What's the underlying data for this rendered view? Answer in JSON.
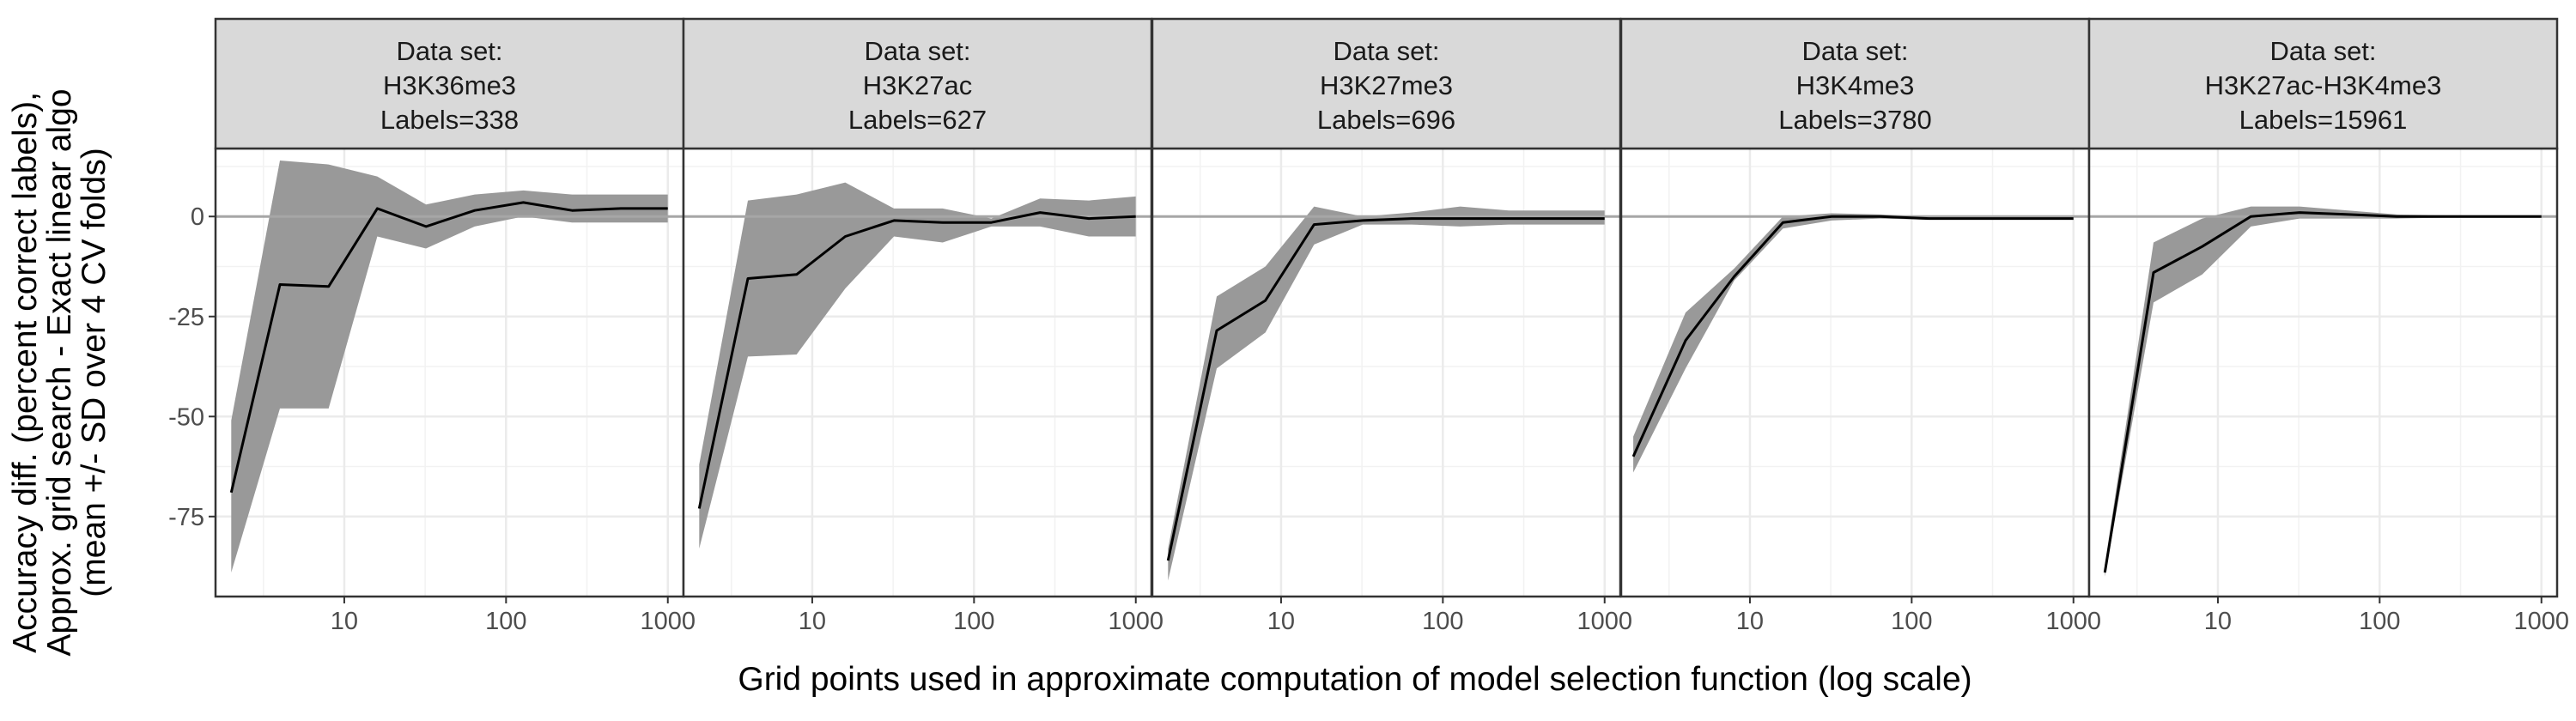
{
  "chart_data": {
    "type": "line",
    "ylabel": [
      "Accuracy diff. (percent correct labels),",
      "Approx. grid search - Exact linear algo",
      "(mean +/- SD over 4 CV folds)"
    ],
    "xlabel": "Grid points used in approximate computation of model selection function (log scale)",
    "x_scale": "log10",
    "xlim": [
      1.6,
      1250
    ],
    "ylim": [
      -95,
      17
    ],
    "x_ticks": [
      10,
      100,
      1000
    ],
    "x_tick_labels": [
      "10",
      "100",
      "1000"
    ],
    "y_ticks": [
      0,
      -25,
      -50,
      -75
    ],
    "y_tick_labels": [
      "0",
      "-25",
      "-50",
      "-75"
    ],
    "reference_line_y": 0,
    "grid": true,
    "colors": {
      "line": "#000000",
      "band": "#999999",
      "reference": "#a6a6a6",
      "strip": "#d9d9d9",
      "grid": "#ebebeb",
      "frame": "#333333"
    },
    "panels": [
      {
        "strip": [
          "Data set:",
          "H3K36me3",
          "Labels=338"
        ],
        "x": [
          2,
          4,
          8,
          16,
          32,
          64,
          128,
          256,
          512,
          1000
        ],
        "mean": [
          -69,
          -17,
          -17.5,
          2,
          -2.5,
          1.5,
          3.5,
          1.5,
          2,
          2
        ],
        "sd_low": [
          -89,
          -48,
          -48,
          -5,
          -8,
          -2.5,
          0,
          -1.5,
          -1.5,
          -1.5
        ],
        "sd_high": [
          -51,
          14,
          13,
          10,
          3,
          5.5,
          6.5,
          5.5,
          5.5,
          5.5
        ]
      },
      {
        "strip": [
          "Data set:",
          "H3K27ac",
          "Labels=627"
        ],
        "x": [
          2,
          4,
          8,
          16,
          32,
          64,
          128,
          256,
          512,
          1000
        ],
        "mean": [
          -73,
          -15.5,
          -14.5,
          -5,
          -1,
          -1.5,
          -1.5,
          1,
          -0.5,
          0
        ],
        "sd_low": [
          -83,
          -35,
          -34.5,
          -18,
          -5,
          -6.5,
          -2.5,
          -2.5,
          -5,
          -5
        ],
        "sd_high": [
          -62,
          4,
          5.5,
          8.5,
          2,
          2,
          -0.5,
          4.5,
          4,
          5
        ]
      },
      {
        "strip": [
          "Data set:",
          "H3K27me3",
          "Labels=696"
        ],
        "x": [
          2,
          4,
          8,
          16,
          32,
          64,
          128,
          256,
          512,
          1000
        ],
        "mean": [
          -86,
          -28.5,
          -21,
          -2,
          -1,
          -0.5,
          -0.5,
          -0.5,
          -0.5,
          -0.5
        ],
        "sd_low": [
          -91,
          -38,
          -29,
          -7,
          -2,
          -2,
          -2.5,
          -2,
          -2,
          -2
        ],
        "sd_high": [
          -83,
          -20,
          -12.5,
          2.5,
          0,
          1,
          2.5,
          1.5,
          1.5,
          1.5
        ]
      },
      {
        "strip": [
          "Data set:",
          "H3K4me3",
          "Labels=3780"
        ],
        "x": [
          2,
          4,
          8,
          16,
          32,
          64,
          128,
          256,
          512,
          1000
        ],
        "mean": [
          -60,
          -31,
          -15,
          -1.5,
          0,
          0,
          -0.5,
          -0.5,
          -0.5,
          -0.5
        ],
        "sd_low": [
          -64,
          -38,
          -16,
          -3,
          -1,
          -0.5,
          -0.8,
          -0.8,
          -0.8,
          -0.8
        ],
        "sd_high": [
          -55,
          -24,
          -13,
          0,
          0.8,
          0.5,
          0,
          0,
          0,
          0
        ],
        "x_note": "first point at about 1.9"
      },
      {
        "strip": [
          "Data set:",
          "H3K27ac-H3K4me3",
          "Labels=15961"
        ],
        "x": [
          2,
          4,
          8,
          16,
          32,
          64,
          128,
          256,
          512,
          1000
        ],
        "mean": [
          -89,
          -14,
          -7.5,
          0,
          1,
          0.5,
          0,
          0,
          0,
          0
        ],
        "sd_low": [
          -90,
          -21.5,
          -14.5,
          -2.5,
          -0.5,
          -0.5,
          -0.5,
          -0.3,
          -0.3,
          -0.3
        ],
        "sd_high": [
          -87,
          -6.5,
          -0.5,
          2.5,
          2.5,
          1.5,
          0.5,
          0.3,
          0.3,
          0.3
        ]
      }
    ]
  }
}
